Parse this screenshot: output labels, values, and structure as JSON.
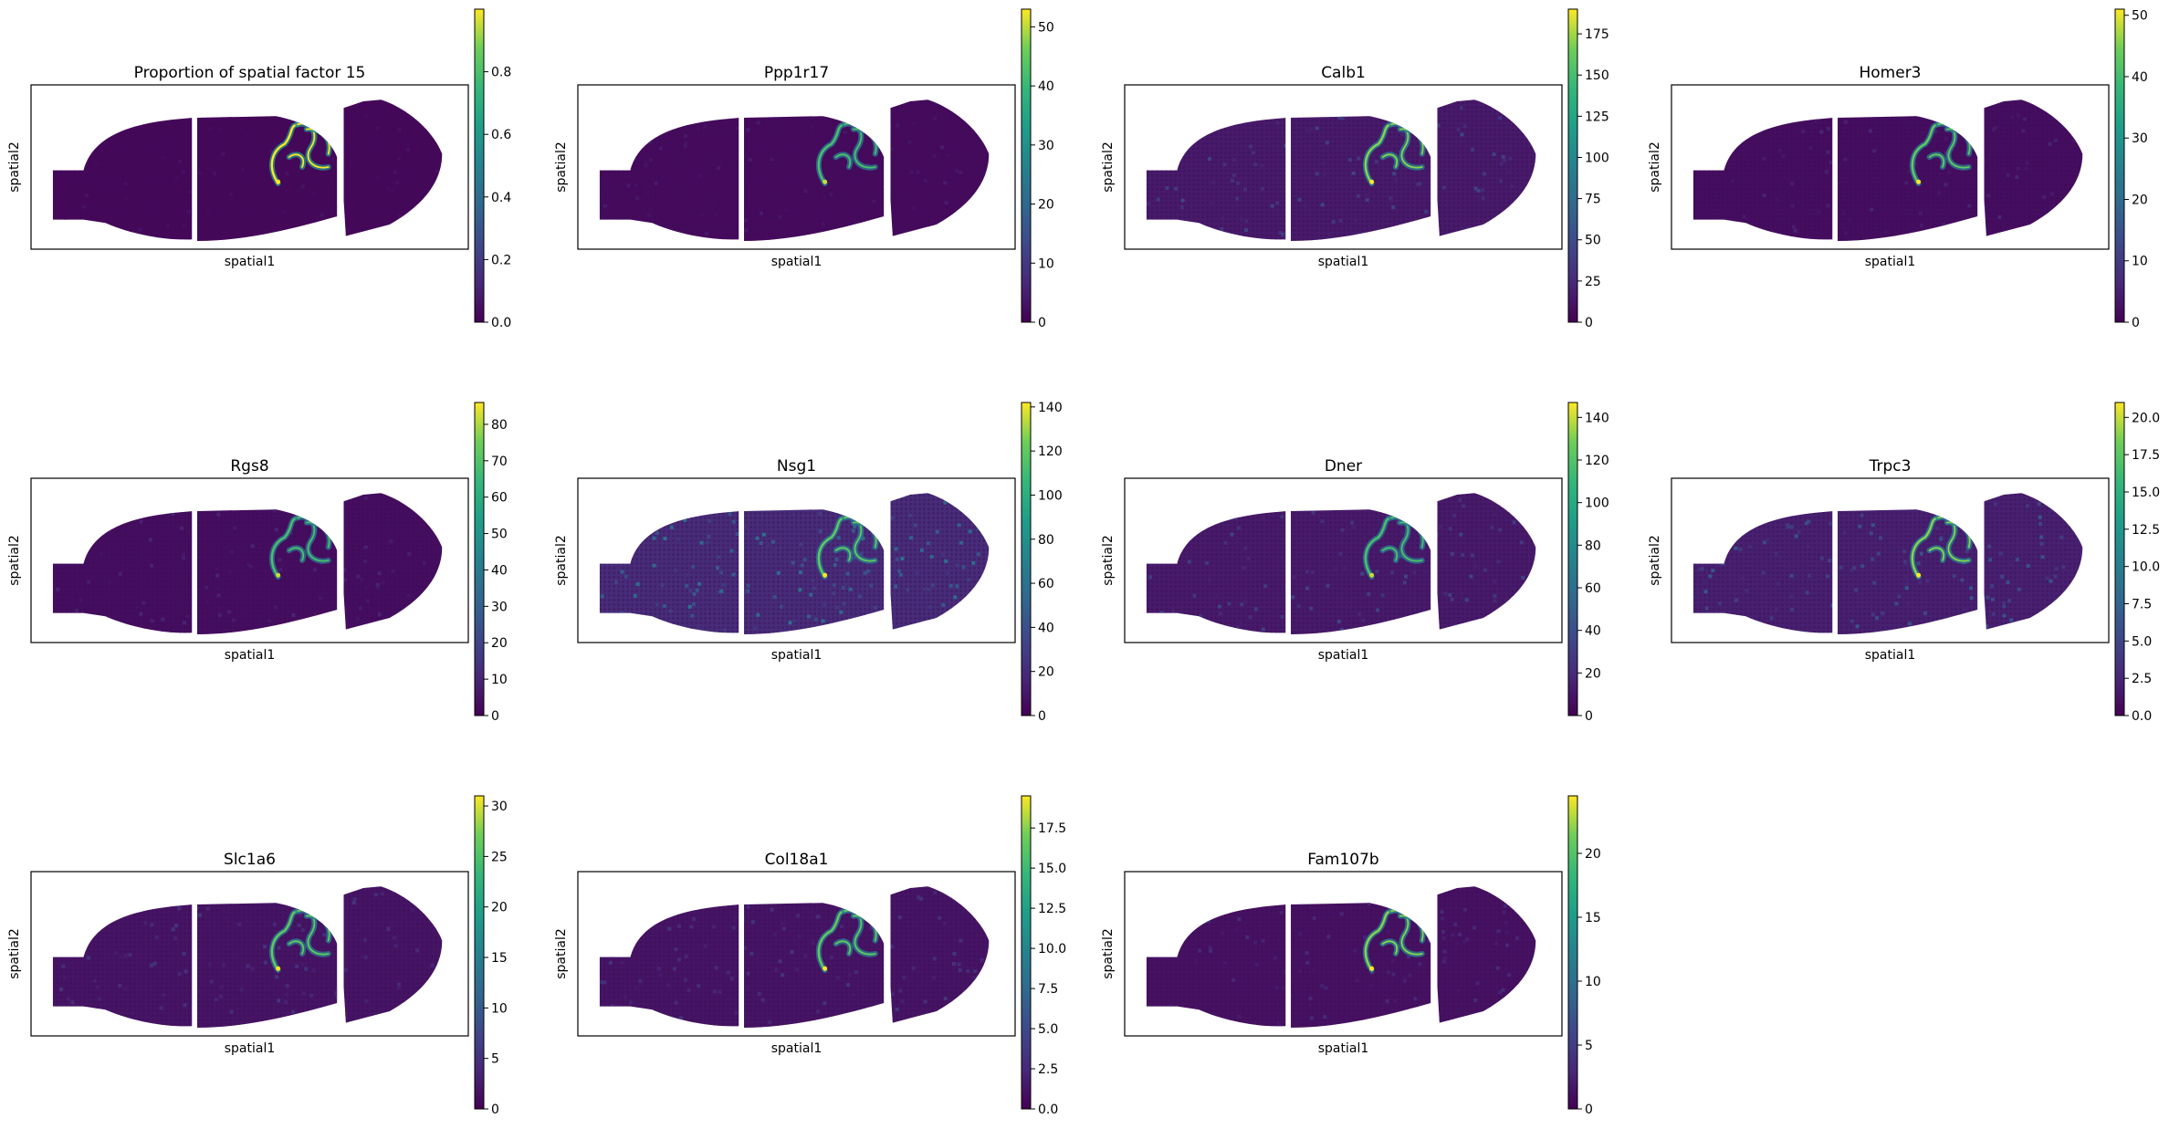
{
  "colormap": "viridis",
  "colors": {
    "tissue_base": "#471365",
    "tissue_dim": "#3b1c5a",
    "frame": "#000000",
    "background": "#ffffff"
  },
  "chart_data": [
    {
      "type": "heatmap",
      "title": "Proportion of spatial factor 15",
      "xlabel": "spatial1",
      "ylabel": "spatial2",
      "colorbar": {
        "min": 0.0,
        "max": 1.0,
        "ticks": [
          "0.0",
          "0.2",
          "0.4",
          "0.6",
          "0.8"
        ]
      },
      "background_intensity": 0.02,
      "hotspot_intensity": 1.0
    },
    {
      "type": "heatmap",
      "title": "Ppp1r17",
      "xlabel": "spatial1",
      "ylabel": "spatial2",
      "colorbar": {
        "min": 0,
        "max": 53,
        "ticks": [
          "0",
          "10",
          "20",
          "30",
          "40",
          "50"
        ]
      },
      "background_intensity": 0.03,
      "hotspot_intensity": 0.8
    },
    {
      "type": "heatmap",
      "title": "Calb1",
      "xlabel": "spatial1",
      "ylabel": "spatial2",
      "colorbar": {
        "min": 0,
        "max": 190,
        "ticks": [
          "0",
          "25",
          "50",
          "75",
          "100",
          "125",
          "150",
          "175"
        ]
      },
      "background_intensity": 0.08,
      "hotspot_intensity": 0.9
    },
    {
      "type": "heatmap",
      "title": "Homer3",
      "xlabel": "spatial1",
      "ylabel": "spatial2",
      "colorbar": {
        "min": 0,
        "max": 51,
        "ticks": [
          "0",
          "10",
          "20",
          "30",
          "40",
          "50"
        ]
      },
      "background_intensity": 0.04,
      "hotspot_intensity": 0.85
    },
    {
      "type": "heatmap",
      "title": "Rgs8",
      "xlabel": "spatial1",
      "ylabel": "spatial2",
      "colorbar": {
        "min": 0,
        "max": 86,
        "ticks": [
          "0",
          "10",
          "20",
          "30",
          "40",
          "50",
          "60",
          "70",
          "80"
        ]
      },
      "background_intensity": 0.04,
      "hotspot_intensity": 0.8
    },
    {
      "type": "heatmap",
      "title": "Nsg1",
      "xlabel": "spatial1",
      "ylabel": "spatial2",
      "colorbar": {
        "min": 0,
        "max": 142,
        "ticks": [
          "0",
          "20",
          "40",
          "60",
          "80",
          "100",
          "120",
          "140"
        ]
      },
      "background_intensity": 0.14,
      "hotspot_intensity": 0.85
    },
    {
      "type": "heatmap",
      "title": "Dner",
      "xlabel": "spatial1",
      "ylabel": "spatial2",
      "colorbar": {
        "min": 0,
        "max": 147,
        "ticks": [
          "0",
          "20",
          "40",
          "60",
          "80",
          "100",
          "120",
          "140"
        ]
      },
      "background_intensity": 0.08,
      "hotspot_intensity": 0.8
    },
    {
      "type": "heatmap",
      "title": "Trpc3",
      "xlabel": "spatial1",
      "ylabel": "spatial2",
      "colorbar": {
        "min": 0.0,
        "max": 21.0,
        "ticks": [
          "0.0",
          "2.5",
          "5.0",
          "7.5",
          "10.0",
          "12.5",
          "15.0",
          "17.5",
          "20.0"
        ]
      },
      "background_intensity": 0.1,
      "hotspot_intensity": 0.9
    },
    {
      "type": "heatmap",
      "title": "Slc1a6",
      "xlabel": "spatial1",
      "ylabel": "spatial2",
      "colorbar": {
        "min": 0,
        "max": 31,
        "ticks": [
          "0",
          "5",
          "10",
          "15",
          "20",
          "25",
          "30"
        ]
      },
      "background_intensity": 0.06,
      "hotspot_intensity": 0.85
    },
    {
      "type": "heatmap",
      "title": "Col18a1",
      "xlabel": "spatial1",
      "ylabel": "spatial2",
      "colorbar": {
        "min": 0.0,
        "max": 19.5,
        "ticks": [
          "0.0",
          "2.5",
          "5.0",
          "7.5",
          "10.0",
          "12.5",
          "15.0",
          "17.5"
        ]
      },
      "background_intensity": 0.06,
      "hotspot_intensity": 0.85
    },
    {
      "type": "heatmap",
      "title": "Fam107b",
      "xlabel": "spatial1",
      "ylabel": "spatial2",
      "colorbar": {
        "min": 0,
        "max": 24.5,
        "ticks": [
          "0",
          "5",
          "10",
          "15",
          "20"
        ]
      },
      "background_intensity": 0.05,
      "hotspot_intensity": 0.9
    }
  ]
}
